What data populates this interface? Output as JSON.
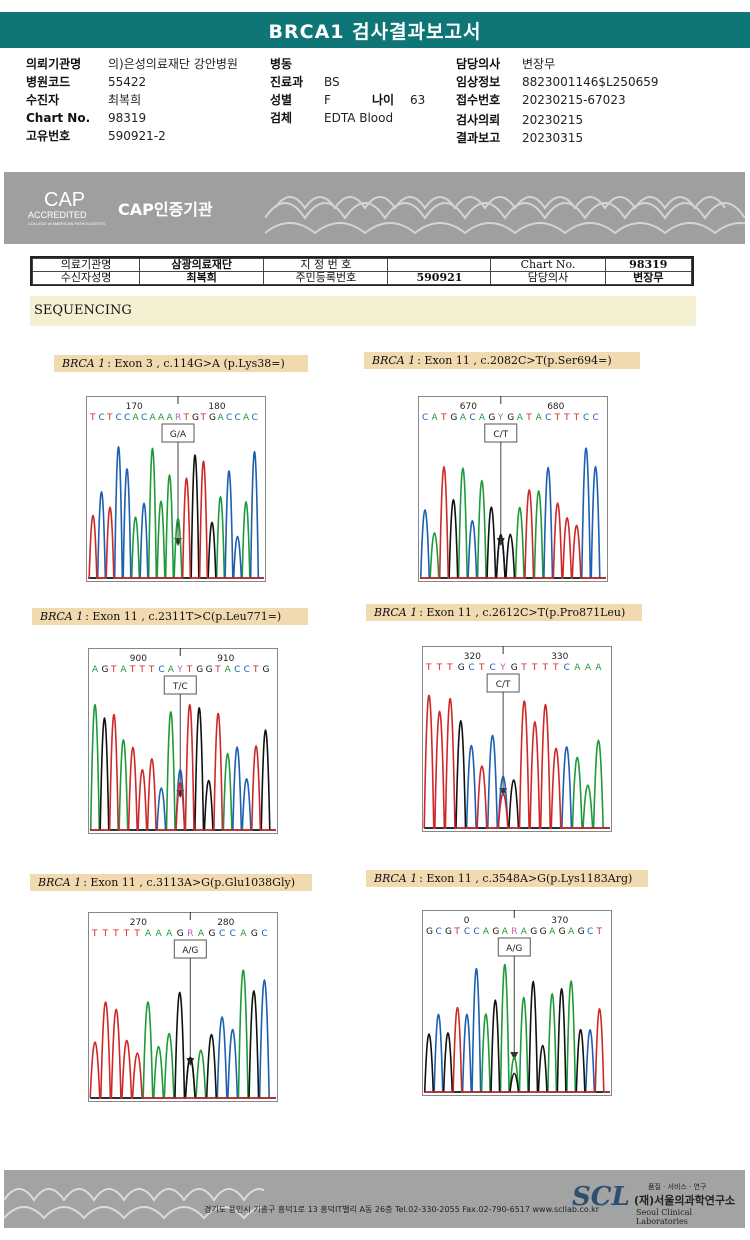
{
  "report_title": "BRCA1 검사결과보고서",
  "patient_info": {
    "col1": [
      {
        "label": "의뢰기관명",
        "value": "의)은성의료재단 강안병원"
      },
      {
        "label": "병원코드",
        "value": "55422"
      },
      {
        "label": "수진자",
        "value": "최복희"
      },
      {
        "label": "Chart No.",
        "value": "98319"
      },
      {
        "label": "고유번호",
        "value": "590921-2"
      }
    ],
    "col2": [
      {
        "label": "병동",
        "value": ""
      },
      {
        "label": "진료과",
        "value": "BS"
      },
      {
        "label": "성별",
        "value": "F"
      },
      {
        "label": "검체",
        "value": "EDTA Blood"
      }
    ],
    "age": {
      "label": "나이",
      "value": "63"
    },
    "col3": [
      {
        "label": "담당의사",
        "value": "변장무"
      },
      {
        "label": "임상정보",
        "value": "8823001146$L250659"
      },
      {
        "label": "접수번호",
        "value": "20230215-67023"
      },
      {
        "label": "검사의뢰",
        "value": "20230215"
      },
      {
        "label": "결과보고",
        "value": "20230315"
      }
    ]
  },
  "cap_band": {
    "logo_main": "CAP",
    "logo_sub": "ACCREDITED",
    "logo_small": "COLLEGE of AMERICAN PATHOLOGISTS",
    "title": "CAP인증기관"
  },
  "sub_table": {
    "row1": [
      "의료기관명",
      "삼광의료재단",
      "지 정 번 호",
      "",
      "Chart No.",
      "98319"
    ],
    "row2": [
      "수신자성명",
      "최복희",
      "주민등록번호",
      "590921",
      "담당의사",
      "변장무"
    ]
  },
  "section_title": "SEQUENCING",
  "variants": [
    {
      "gene": "BRCA 1",
      "desc": ": Exon 3 , c.114G>A (p.Lys38=)",
      "pos": [
        "170",
        "180"
      ],
      "bases": "TCTCCACAAARTGTGACCAC",
      "call": "G/A"
    },
    {
      "gene": "BRCA 1",
      "desc": ": Exon 11 , c.2082C>T(p.Ser694=)",
      "pos": [
        "670",
        "680"
      ],
      "bases": "CATGACAGYGATACTTTCC",
      "call": "C/T"
    },
    {
      "gene": "BRCA 1",
      "desc": ": Exon 11 , c.2311T>C(p.Leu771=)",
      "pos": [
        "900",
        "910"
      ],
      "bases": "AGTATTTCAYTGGTACCTG",
      "call": "T/C"
    },
    {
      "gene": "BRCA 1",
      "desc": ": Exon 11 , c.2612C>T(p.Pro871Leu)",
      "pos": [
        "320",
        "330"
      ],
      "bases": "TTTGCTCYGTTTTCAAA",
      "call": "C/T"
    },
    {
      "gene": "BRCA 1",
      "desc": ": Exon 11 , c.3113A>G(p.Glu1038Gly)",
      "pos": [
        "270",
        "280"
      ],
      "bases": "TTTTTAAAGRAGCCAGC",
      "call": "A/G"
    },
    {
      "gene": "BRCA 1",
      "desc": ": Exon 11 , c.3548A>G(p.Lys1183Arg)",
      "pos": [
        "0",
        "370"
      ],
      "bases": "GCGTCCAGARAGGAGAGCT",
      "call": "A/G"
    }
  ],
  "footer": {
    "address": "경기도 용인시 기흥구 흥덕1로 13 흥덕IT밸리 A동 26층   Tel.02-330-2055   Fax.02-790-6517   www.scllab.co.kr",
    "logo": "SCL",
    "slogan": "품질 · 서비스 · 연구",
    "org_kr": "(재)서울의과학연구소",
    "org_en": "Seoul Clinical Laboratories"
  },
  "colors": {
    "header": "#0f7678",
    "A": "#1f9a3a",
    "C": "#1e5fb0",
    "G": "#111111",
    "T": "#d02828"
  }
}
